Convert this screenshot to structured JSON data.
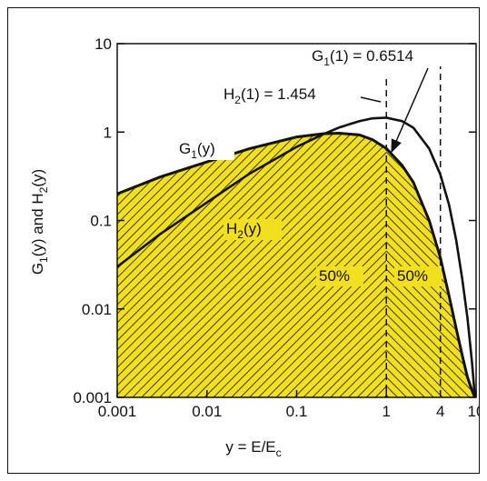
{
  "chart_data": {
    "type": "line",
    "xscale": "log",
    "yscale": "log",
    "xlim": [
      0.001,
      10
    ],
    "ylim": [
      0.001,
      10
    ],
    "xlabel": "y = E/E_c",
    "ylabel": "G_1(y) and H_2(y)",
    "x_ticks": [
      {
        "value": 0.001,
        "label": "0.001"
      },
      {
        "value": 0.01,
        "label": "0.01"
      },
      {
        "value": 0.1,
        "label": "0.1"
      },
      {
        "value": 1,
        "label": "1"
      },
      {
        "value": 4,
        "label": "4"
      },
      {
        "value": 10,
        "label": "10"
      }
    ],
    "y_ticks": [
      {
        "value": 0.001,
        "label": "0.001"
      },
      {
        "value": 0.01,
        "label": "0.01"
      },
      {
        "value": 0.1,
        "label": "0.1"
      },
      {
        "value": 1,
        "label": "1"
      },
      {
        "value": 10,
        "label": "10"
      }
    ],
    "series": [
      {
        "name": "G_1(y)",
        "fill": "#f2e01e",
        "hatch": true,
        "x": [
          0.001,
          0.003,
          0.01,
          0.03,
          0.1,
          0.2,
          0.3,
          0.5,
          0.7,
          1,
          1.5,
          2,
          3,
          4,
          5,
          6,
          7,
          8,
          9,
          9.7
        ],
        "y": [
          0.2,
          0.31,
          0.46,
          0.65,
          0.88,
          0.96,
          0.97,
          0.93,
          0.82,
          0.6514,
          0.42,
          0.27,
          0.1,
          0.038,
          0.014,
          0.006,
          0.003,
          0.0017,
          0.0012,
          0.001
        ]
      },
      {
        "name": "H_2(y)",
        "x": [
          0.001,
          0.003,
          0.01,
          0.03,
          0.1,
          0.2,
          0.3,
          0.5,
          0.7,
          1,
          1.5,
          2,
          3,
          4,
          5,
          6,
          7,
          8,
          9,
          9.7
        ],
        "y": [
          0.03,
          0.07,
          0.16,
          0.34,
          0.68,
          0.95,
          1.13,
          1.33,
          1.43,
          1.454,
          1.33,
          1.12,
          0.65,
          0.33,
          0.15,
          0.06,
          0.022,
          0.008,
          0.0025,
          0.001
        ]
      }
    ],
    "vertical_lines": [
      {
        "x": 1,
        "style": "dashed"
      },
      {
        "x": 4,
        "style": "dashed"
      }
    ],
    "annotations": [
      {
        "text": "G_1(1) = 0.6514",
        "x": 1,
        "y": 0.6514
      },
      {
        "text": "H_2(1) = 1.454",
        "x": 1,
        "y": 1.454
      },
      {
        "text": "50%",
        "region": "left of y = 1"
      },
      {
        "text": "50%",
        "region": "right of y = 1"
      }
    ],
    "series_labels": [
      {
        "text": "G_1(y)"
      },
      {
        "text": "H_2(y)"
      }
    ],
    "grid": false,
    "colors": {
      "fill": "#f2e01e",
      "line": "#111111"
    }
  }
}
